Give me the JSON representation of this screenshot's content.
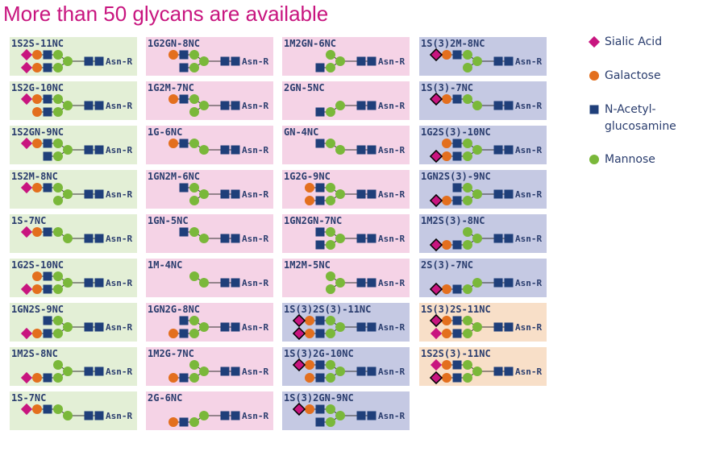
{
  "title": "More than 50 glycans are available",
  "core_label": "Asn-R",
  "columns": [
    [
      "1S2S-11NC",
      "1S2G-10NC",
      "1S2GN-9NC",
      "1S2M-8NC",
      "1S-7NC",
      "1G2S-10NC",
      "1GN2S-9NC",
      "1M2S-8NC",
      "1S-7NC"
    ],
    [
      "1G2GN-8NC",
      "1G2M-7NC",
      "1G-6NC",
      "1GN2M-6NC",
      "1GN-5NC",
      "1M-4NC",
      "1GN2G-8NC",
      "1M2G-7NC",
      "2G-6NC"
    ],
    [
      "1M2GN-6NC",
      "2GN-5NC",
      "GN-4NC",
      "1G2G-9NC",
      "1GN2GN-7NC",
      "1M2M-5NC",
      "1S(3)2S(3)-11NC",
      "1S(3)2G-10NC",
      "1S(3)2GN-9NC"
    ],
    [
      "1S(3)2M-8NC",
      "1S(3)-7NC",
      "1G2S(3)-10NC",
      "1GN2S(3)-9NC",
      "1M2S(3)-8NC",
      "2S(3)-7NC",
      "1S(3)2S-11NC",
      "1S2S(3)-11NC"
    ]
  ],
  "legend": [
    {
      "symbol": "sialic",
      "lines": [
        "Sialic Acid"
      ]
    },
    {
      "symbol": "gal",
      "lines": [
        "Galactose"
      ]
    },
    {
      "symbol": "glcnac",
      "lines": [
        "N-Acetyl-",
        "glucosamine"
      ]
    },
    {
      "symbol": "man",
      "lines": [
        "Mannose"
      ]
    }
  ]
}
